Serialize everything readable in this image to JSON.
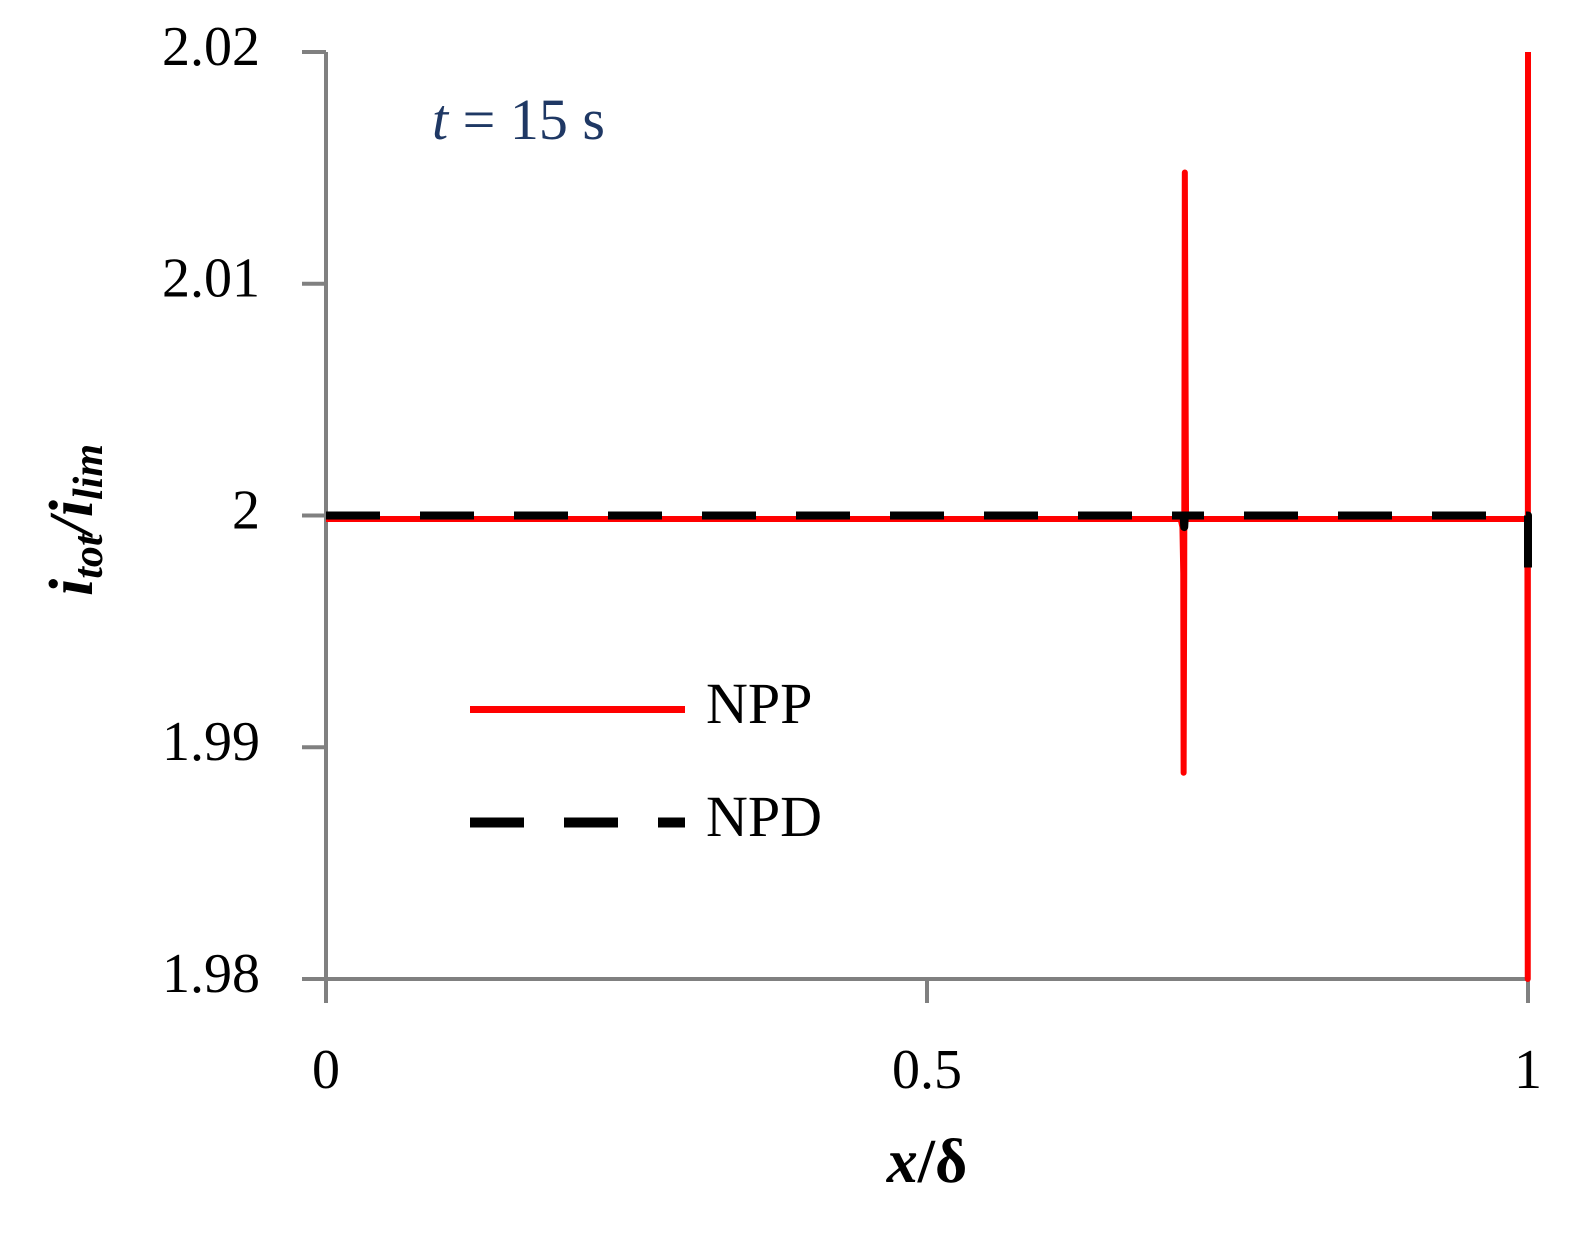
{
  "chart_data": {
    "type": "line",
    "annotation": [
      "t",
      " = 15 s"
    ],
    "xlabel": [
      "x",
      "/δ"
    ],
    "ylabel": [
      "i",
      "tot",
      "/",
      "i",
      "lim"
    ],
    "xlim": [
      0,
      1
    ],
    "xticks": [
      0,
      0.5,
      1
    ],
    "ylim": [
      1.98,
      2.02
    ],
    "yticks": [
      1.98,
      1.99,
      2,
      2.01,
      2.02
    ],
    "legend": "center-left",
    "series": [
      {
        "name": "NPP",
        "color": "#ff0000",
        "dash": false,
        "x": [
          0,
          0.711,
          0.7125,
          0.7132,
          0.7135,
          0.714,
          0.7145,
          0.7155,
          0.999,
          0.9995,
          0.9998,
          1
        ],
        "values": [
          1.99985,
          1.99985,
          1.9995,
          1.9975,
          1.9889,
          1.9975,
          2.0148,
          1.99985,
          1.99985,
          1.99985,
          1.98,
          2.02
        ]
      },
      {
        "name": "NPD",
        "color": "#000000",
        "dash": true,
        "x": [
          0,
          0.7135,
          0.714,
          0.7145,
          1,
          1
        ],
        "values": [
          2,
          2,
          1.9995,
          2,
          2,
          1.9975
        ]
      }
    ]
  }
}
